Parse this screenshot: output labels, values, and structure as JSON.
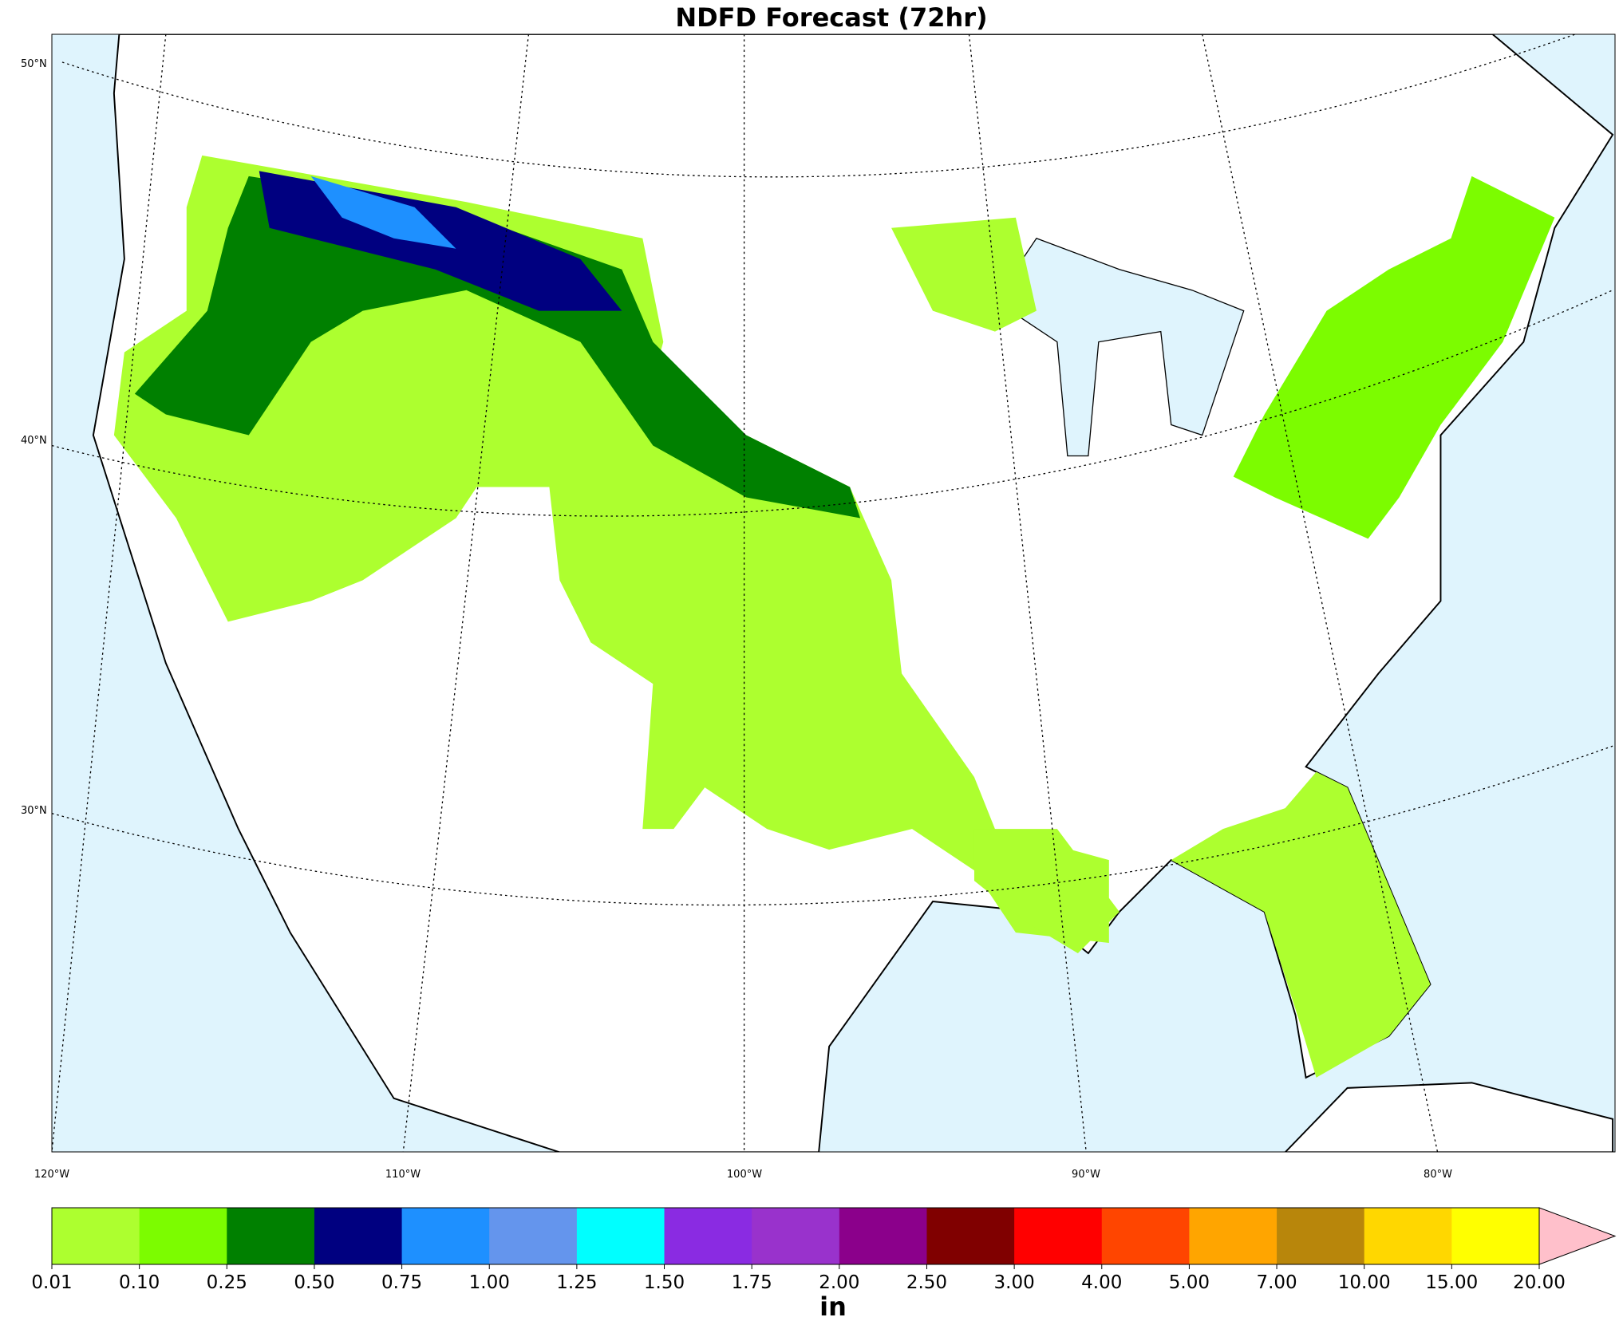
{
  "title": "NDFD Forecast (72hr)",
  "lat_labels": [
    "50°N",
    "40°N",
    "30°N"
  ],
  "lon_labels": [
    "120°W",
    "110°W",
    "100°W",
    "90°W",
    "80°W"
  ],
  "colorbar": {
    "ticks": [
      "0.01",
      "0.10",
      "0.25",
      "0.50",
      "0.75",
      "1.00",
      "1.25",
      "1.50",
      "1.75",
      "2.00",
      "2.50",
      "3.00",
      "4.00",
      "5.00",
      "7.00",
      "10.00",
      "15.00",
      "20.00"
    ],
    "colors": [
      "#adff2f",
      "#7cfc00",
      "#008000",
      "#000080",
      "#1e90ff",
      "#6495ed",
      "#00ffff",
      "#8a2be2",
      "#9932cc",
      "#8b008b",
      "#800000",
      "#ff0000",
      "#ff4500",
      "#ffa500",
      "#b8860b",
      "#ffd700",
      "#ffff00"
    ],
    "extend_color": "#ffc0cb",
    "unit": "in"
  }
}
